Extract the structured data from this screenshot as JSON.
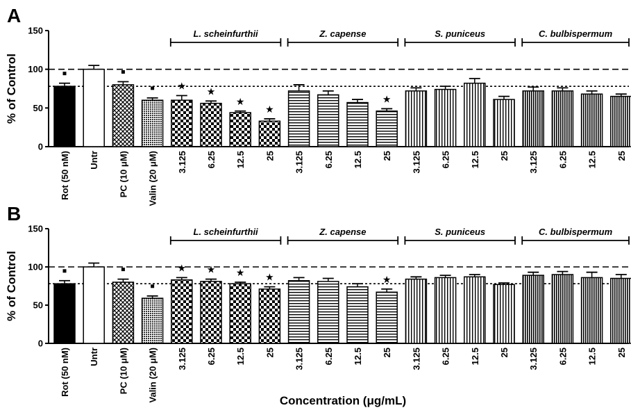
{
  "chart_data": {
    "type": "bar",
    "xlabel": "Concentration (μg/mL)",
    "ylabel": "% of Control",
    "ylim": [
      0,
      150
    ],
    "yticks": [
      0,
      50,
      100,
      150
    ],
    "reference_lines": [
      100,
      78
    ],
    "categories": [
      "Rot (50 nM)",
      "Untr",
      "PC (10 μM)",
      "Valin (20 μM)",
      "3.125",
      "6.25",
      "12.5",
      "25",
      "3.125",
      "6.25",
      "12.5",
      "25",
      "3.125",
      "6.25",
      "12.5",
      "25",
      "3.125",
      "6.25",
      "12.5",
      "25"
    ],
    "bar_styles": [
      "solid",
      "open",
      "crosshatch",
      "dotted",
      "checker",
      "checker",
      "checker",
      "checker",
      "horizontal",
      "horizontal",
      "horizontal",
      "horizontal",
      "vertical",
      "vertical",
      "vertical",
      "vertical",
      "dense-vertical",
      "dense-vertical",
      "dense-vertical",
      "dense-vertical"
    ],
    "groups": [
      {
        "label": "L. scheinfurthii",
        "start": 4,
        "end": 7
      },
      {
        "label": "Z. capense",
        "start": 8,
        "end": 11
      },
      {
        "label": "S. puniceus",
        "start": 12,
        "end": 15
      },
      {
        "label": "C. bulbispermum",
        "start": 16,
        "end": 19
      }
    ],
    "panels": [
      {
        "label": "A",
        "values": [
          78,
          100,
          80,
          60,
          60,
          56,
          44,
          33,
          72,
          67,
          57,
          46,
          72,
          74,
          82,
          61,
          72,
          72,
          68,
          65
        ],
        "errors": [
          4,
          5,
          4,
          3,
          6,
          3,
          2,
          3,
          8,
          5,
          4,
          3,
          4,
          4,
          6,
          4,
          5,
          4,
          4,
          3
        ],
        "square_markers": [
          0,
          2,
          3
        ],
        "star_markers": [
          4,
          5,
          6,
          7,
          11
        ]
      },
      {
        "label": "B",
        "values": [
          78,
          100,
          80,
          59,
          83,
          81,
          78,
          71,
          82,
          81,
          74,
          67,
          84,
          86,
          87,
          77,
          89,
          90,
          86,
          85
        ],
        "errors": [
          4,
          5,
          4,
          3,
          3,
          3,
          2,
          3,
          4,
          4,
          4,
          4,
          3,
          3,
          3,
          2,
          4,
          4,
          7,
          5
        ],
        "square_markers": [
          0,
          2,
          3
        ],
        "star_markers": [
          4,
          5,
          6,
          7,
          11
        ]
      }
    ]
  }
}
